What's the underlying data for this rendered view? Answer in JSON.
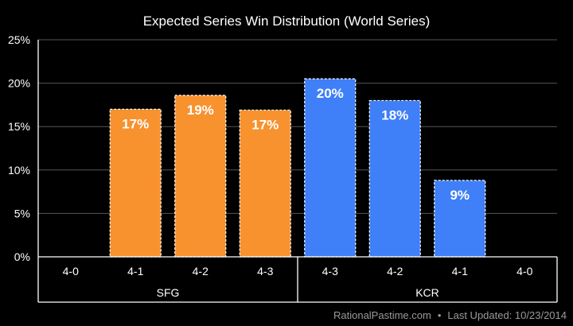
{
  "chart_data": {
    "type": "bar",
    "title": "Expected Series Win Distribution (World Series)",
    "categories": [
      "4-0",
      "4-1",
      "4-2",
      "4-3",
      "4-3",
      "4-2",
      "4-1",
      "4-0"
    ],
    "groups": [
      {
        "name": "SFG",
        "span": [
          0,
          3
        ]
      },
      {
        "name": "KCR",
        "span": [
          4,
          7
        ]
      }
    ],
    "series": [
      {
        "values": [
          0,
          17.0,
          18.6,
          16.9,
          20.5,
          18.0,
          8.8,
          0
        ],
        "colors": [
          "#f7922f",
          "#f7922f",
          "#f7922f",
          "#f7922f",
          "#3f7ff7",
          "#3f7ff7",
          "#3f7ff7",
          "#3f7ff7"
        ]
      }
    ],
    "data_labels": [
      "",
      "17%",
      "19%",
      "17%",
      "20%",
      "18%",
      "9%",
      ""
    ],
    "yticks": [
      "0%",
      "5%",
      "10%",
      "15%",
      "20%",
      "25%"
    ],
    "ylim": [
      0,
      25
    ],
    "grid": true
  },
  "footer": {
    "source": "RationalPastime.com",
    "separator": "•",
    "updated": "Last Updated: 10/23/2014"
  }
}
